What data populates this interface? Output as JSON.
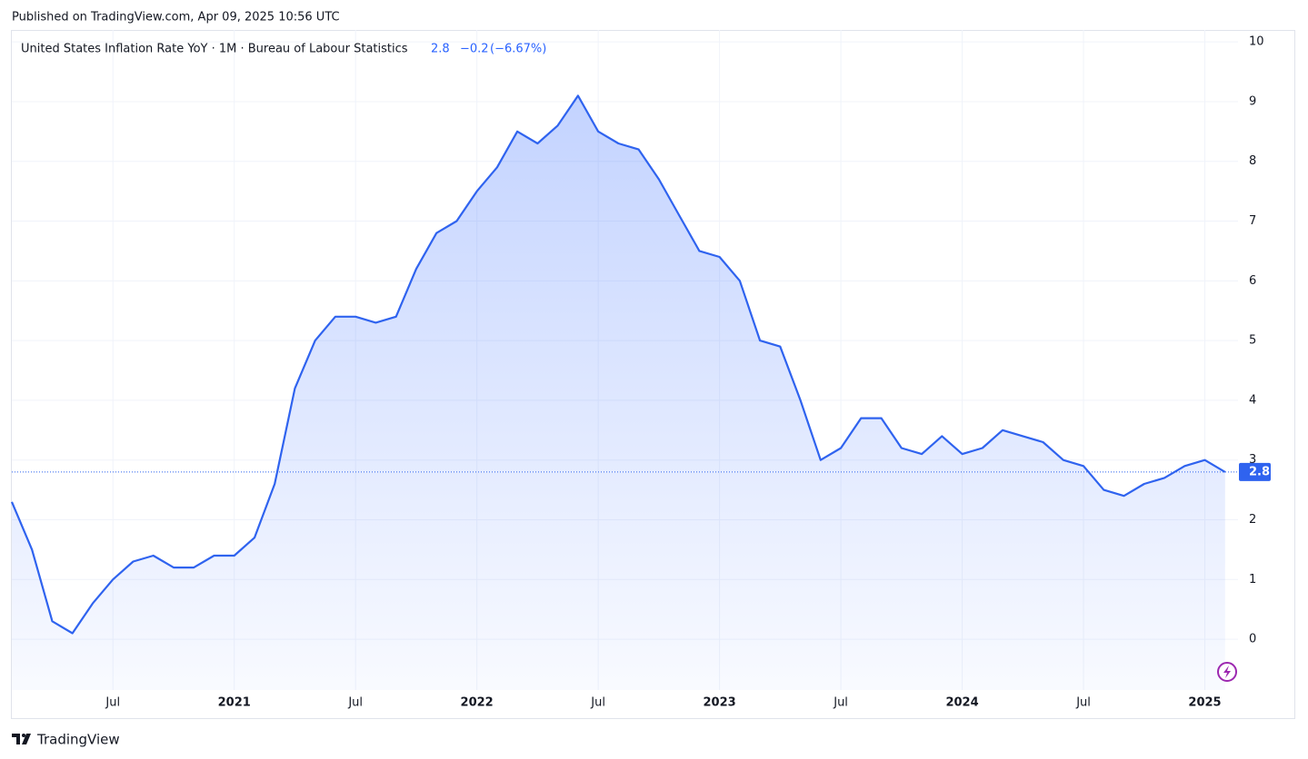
{
  "published": "Published on TradingView.com, Apr 09, 2025 10:56 UTC",
  "brand": "TradingView",
  "chart_data": {
    "type": "area",
    "title": "United States Inflation Rate YoY · 1M · Bureau of Labour Statistics",
    "change": "−0.2",
    "change_percent": "(−6.67%)",
    "x": [
      "2020-02",
      "2020-03",
      "2020-04",
      "2020-05",
      "2020-06",
      "2020-07",
      "2020-08",
      "2020-09",
      "2020-10",
      "2020-11",
      "2020-12",
      "2021-01",
      "2021-02",
      "2021-03",
      "2021-04",
      "2021-05",
      "2021-06",
      "2021-07",
      "2021-08",
      "2021-09",
      "2021-10",
      "2021-11",
      "2021-12",
      "2022-01",
      "2022-02",
      "2022-03",
      "2022-04",
      "2022-05",
      "2022-06",
      "2022-07",
      "2022-08",
      "2022-09",
      "2022-10",
      "2022-11",
      "2022-12",
      "2023-01",
      "2023-02",
      "2023-03",
      "2023-04",
      "2023-05",
      "2023-06",
      "2023-07",
      "2023-08",
      "2023-09",
      "2023-10",
      "2023-11",
      "2023-12",
      "2024-01",
      "2024-02",
      "2024-03",
      "2024-04",
      "2024-05",
      "2024-06",
      "2024-07",
      "2024-08",
      "2024-09",
      "2024-10",
      "2024-11",
      "2024-12",
      "2025-01",
      "2025-02"
    ],
    "series": [
      {
        "name": "United States Inflation Rate YoY",
        "color": "#2f63ef",
        "values": [
          2.3,
          1.5,
          0.3,
          0.1,
          0.6,
          1.0,
          1.3,
          1.4,
          1.2,
          1.2,
          1.4,
          1.4,
          1.7,
          2.6,
          4.2,
          5.0,
          5.4,
          5.4,
          5.3,
          5.4,
          6.2,
          6.8,
          7.0,
          7.5,
          7.9,
          8.5,
          8.3,
          8.6,
          9.1,
          8.5,
          8.3,
          8.2,
          7.7,
          7.1,
          6.5,
          6.4,
          6.0,
          5.0,
          4.9,
          4.0,
          3.0,
          3.2,
          3.7,
          3.7,
          3.2,
          3.1,
          3.4,
          3.1,
          3.2,
          3.5,
          3.4,
          3.3,
          3.0,
          2.9,
          2.5,
          2.4,
          2.6,
          2.7,
          2.9,
          3.0,
          2.8
        ]
      }
    ],
    "xlim": [
      "2020-02",
      "2025-03"
    ],
    "xticks": [
      {
        "value": "2020-07",
        "label": "Jul"
      },
      {
        "value": "2021-01",
        "label": "2021"
      },
      {
        "value": "2021-07",
        "label": "Jul"
      },
      {
        "value": "2022-01",
        "label": "2022"
      },
      {
        "value": "2022-07",
        "label": "Jul"
      },
      {
        "value": "2023-01",
        "label": "2023"
      },
      {
        "value": "2023-07",
        "label": "Jul"
      },
      {
        "value": "2024-01",
        "label": "2024"
      },
      {
        "value": "2024-07",
        "label": "Jul"
      },
      {
        "value": "2025-01",
        "label": "2025"
      }
    ],
    "ylim": [
      -0.85,
      10.2
    ],
    "yticks": [
      0,
      1,
      2,
      3,
      4,
      5,
      6,
      7,
      8,
      9,
      10
    ],
    "grid": true
  }
}
